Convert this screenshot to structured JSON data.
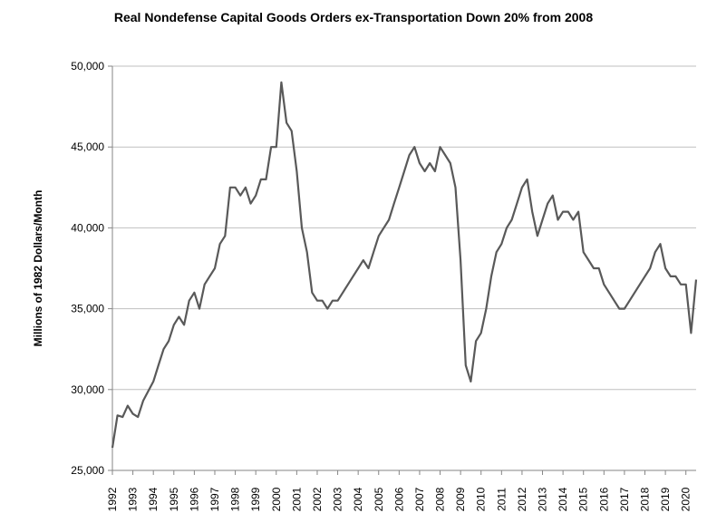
{
  "chart_data": {
    "type": "line",
    "title": "Real Nondefense Capital Goods Orders ex-Transportation Down 20% from 2008",
    "ylabel": "Millions of 1982 Dollars/Month",
    "x": [
      1992,
      1992.25,
      1992.5,
      1992.75,
      1993,
      1993.25,
      1993.5,
      1993.75,
      1994,
      1994.25,
      1994.5,
      1994.75,
      1995,
      1995.25,
      1995.5,
      1995.75,
      1996,
      1996.25,
      1996.5,
      1996.75,
      1997,
      1997.25,
      1997.5,
      1997.75,
      1998,
      1998.25,
      1998.5,
      1998.75,
      1999,
      1999.25,
      1999.5,
      1999.75,
      2000,
      2000.25,
      2000.5,
      2000.75,
      2001,
      2001.25,
      2001.5,
      2001.75,
      2002,
      2002.25,
      2002.5,
      2002.75,
      2003,
      2003.25,
      2003.5,
      2003.75,
      2004,
      2004.25,
      2004.5,
      2004.75,
      2005,
      2005.25,
      2005.5,
      2005.75,
      2006,
      2006.25,
      2006.5,
      2006.75,
      2007,
      2007.25,
      2007.5,
      2007.75,
      2008,
      2008.25,
      2008.5,
      2008.75,
      2009,
      2009.25,
      2009.5,
      2009.75,
      2010,
      2010.25,
      2010.5,
      2010.75,
      2011,
      2011.25,
      2011.5,
      2011.75,
      2012,
      2012.25,
      2012.5,
      2012.75,
      2013,
      2013.25,
      2013.5,
      2013.75,
      2014,
      2014.25,
      2014.5,
      2014.75,
      2015,
      2015.25,
      2015.5,
      2015.75,
      2016,
      2016.25,
      2016.5,
      2016.75,
      2017,
      2017.25,
      2017.5,
      2017.75,
      2018,
      2018.25,
      2018.5,
      2018.75,
      2019,
      2019.25,
      2019.5,
      2019.75,
      2020,
      2020.25,
      2020.5
    ],
    "series": [
      {
        "name": "Orders",
        "color": "#595959",
        "values": [
          26400,
          28400,
          28300,
          29000,
          28500,
          28300,
          29300,
          29900,
          30500,
          31500,
          32500,
          33000,
          34000,
          34500,
          34000,
          35500,
          36000,
          35000,
          36500,
          37000,
          37500,
          39000,
          39500,
          42500,
          42500,
          42000,
          42500,
          41500,
          42000,
          43000,
          43000,
          45000,
          45000,
          49000,
          46500,
          46000,
          43500,
          40000,
          38500,
          36000,
          35500,
          35500,
          35000,
          35500,
          35500,
          36000,
          36500,
          37000,
          37500,
          38000,
          37500,
          38500,
          39500,
          40000,
          40500,
          41500,
          42500,
          43500,
          44500,
          45000,
          44000,
          43500,
          44000,
          43500,
          45000,
          44500,
          44000,
          42500,
          38000,
          31500,
          30500,
          33000,
          33500,
          35000,
          37000,
          38500,
          39000,
          40000,
          40500,
          41500,
          42500,
          43000,
          41000,
          39500,
          40500,
          41500,
          42000,
          40500,
          41000,
          41000,
          40500,
          41000,
          38500,
          38000,
          37500,
          37500,
          36500,
          36000,
          35500,
          35000,
          35000,
          35500,
          36000,
          36500,
          37000,
          37500,
          38500,
          39000,
          37500,
          37000,
          37000,
          36500,
          36500,
          33500,
          36800
        ]
      }
    ],
    "xlim": [
      1992,
      2020.5
    ],
    "xticks": [
      1992,
      1993,
      1994,
      1995,
      1996,
      1997,
      1998,
      1999,
      2000,
      2001,
      2002,
      2003,
      2004,
      2005,
      2006,
      2007,
      2008,
      2009,
      2010,
      2011,
      2012,
      2013,
      2014,
      2015,
      2016,
      2017,
      2018,
      2019,
      2020
    ],
    "ylim": [
      25000,
      50000
    ],
    "yticks": [
      {
        "value": 25000,
        "label": "25,000"
      },
      {
        "value": 30000,
        "label": "30,000"
      },
      {
        "value": 35000,
        "label": "35,000"
      },
      {
        "value": 40000,
        "label": "40,000"
      },
      {
        "value": 45000,
        "label": "45,000"
      },
      {
        "value": 50000,
        "label": "50,000"
      }
    ],
    "grid": true
  }
}
